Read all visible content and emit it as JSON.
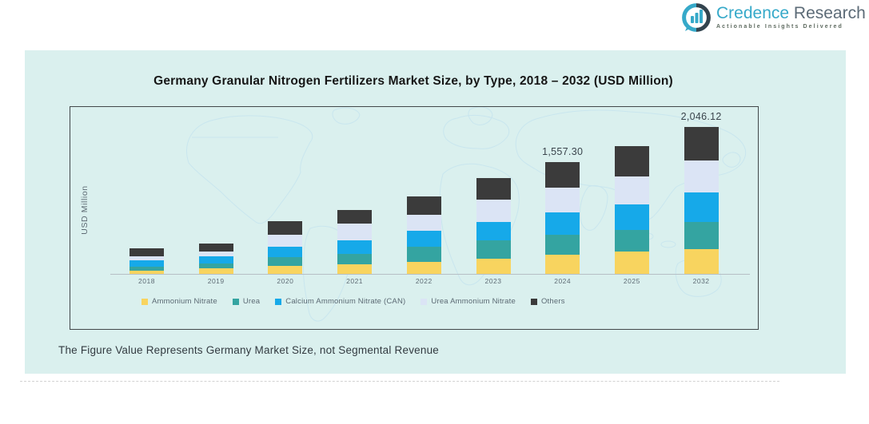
{
  "logo": {
    "name_primary": "Credence",
    "name_secondary": "Research",
    "tagline": "Actionable Insights Delivered",
    "icon": "bar-chart-bubble-icon",
    "accent_color": "#36a9c9",
    "secondary_color": "#5c6b77"
  },
  "chart": {
    "title": "Germany Granular Nitrogen Fertilizers Market Size, by Type, 2018 – 2032 (USD Million)",
    "ylabel": "USD Million",
    "footnote": "The Figure Value Represents Germany Market Size, not Segmental Revenue",
    "card_background": "#daf0ee"
  },
  "chart_data": {
    "type": "bar",
    "stacked": true,
    "title": "Germany Granular Nitrogen Fertilizers Market Size, by Type, 2018 – 2032 (USD Million)",
    "xlabel": "",
    "ylabel": "USD Million",
    "categories": [
      "2018",
      "2019",
      "2020",
      "2021",
      "2022",
      "2023",
      "2024",
      "2025",
      "2032"
    ],
    "series": [
      {
        "name": "Ammonium Nitrate",
        "color": "#f8d45f",
        "values": [
          40,
          80,
          108,
          138,
          165,
          210,
          262,
          308,
          341
        ]
      },
      {
        "name": "Urea",
        "color": "#34a4a1",
        "values": [
          62,
          69,
          130,
          145,
          218,
          262,
          283,
          308,
          381
        ]
      },
      {
        "name": "Calcium Ammonium Nitrate (CAN)",
        "color": "#16a9e9",
        "values": [
          88,
          95,
          145,
          182,
          218,
          255,
          309,
          352,
          408
        ]
      },
      {
        "name": "Urea Ammonium Nitrate",
        "color": "#dbe4f5",
        "values": [
          58,
          66,
          167,
          237,
          227,
          303,
          345,
          392,
          445
        ]
      },
      {
        "name": "Others",
        "color": "#3b3b3b",
        "values": [
          103,
          116,
          185,
          189,
          248,
          308,
          358.3,
          420,
          471.12
        ]
      }
    ],
    "totals": [
      351,
      426,
      735,
      891,
      1076,
      1338,
      1557.3,
      1780,
      2046.12
    ],
    "point_labels": {
      "2024": "1,557.30",
      "2032": "2,046.12"
    },
    "legend_position": "bottom-inside",
    "grid": false,
    "ylim": [
      0,
      2200
    ]
  }
}
